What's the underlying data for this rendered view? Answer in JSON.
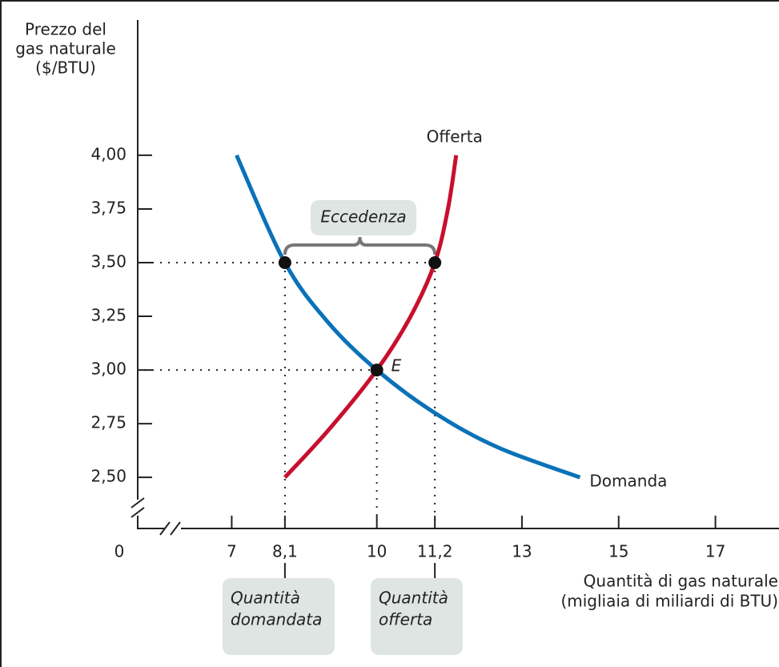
{
  "chart_data": {
    "type": "line",
    "y_label": [
      "Prezzo del",
      "gas naturale",
      "($/BTU)"
    ],
    "x_label": [
      "Quantità di gas naturale",
      "(migliaia di miliardi di BTU)"
    ],
    "origin_label": "0",
    "xlim": [
      6,
      18
    ],
    "ylim": [
      2.4,
      4.6
    ],
    "xticks": [
      7,
      {
        "value": 8.1,
        "label": "8,1"
      },
      10,
      {
        "value": 11.2,
        "label": "11,2"
      },
      13,
      15,
      17
    ],
    "yticks": [
      {
        "value": 2.5,
        "label": "2,50"
      },
      {
        "value": 2.75,
        "label": "2,75"
      },
      {
        "value": 3,
        "label": "3,00"
      },
      {
        "value": 3.25,
        "label": "3,25"
      },
      {
        "value": 3.5,
        "label": "3,50"
      },
      {
        "value": 3.75,
        "label": "3,75"
      },
      {
        "value": 4,
        "label": "4,00"
      }
    ],
    "series": [
      {
        "name": "Domanda",
        "color": "#0a72b8",
        "x": [
          7.1,
          8.1,
          9,
          10,
          11.2,
          12.5,
          14.2
        ],
        "values": [
          4.0,
          3.5,
          3.22,
          3.0,
          2.8,
          2.64,
          2.5
        ]
      },
      {
        "name": "Offerta",
        "color": "#c8102e",
        "x": [
          8.1,
          9,
          10,
          10.7,
          11.2,
          11.47,
          11.64
        ],
        "values": [
          2.5,
          2.72,
          3.0,
          3.25,
          3.5,
          3.75,
          4.0
        ]
      }
    ],
    "points": [
      {
        "x": 8.1,
        "y": 3.5
      },
      {
        "x": 11.2,
        "y": 3.5
      },
      {
        "x": 10,
        "y": 3,
        "label": "E"
      }
    ],
    "annotations": {
      "surplus": "Eccedenza",
      "quantity_demanded": [
        "Quantità",
        "domandata"
      ],
      "quantity_supplied": [
        "Quantità",
        "offerta"
      ]
    }
  }
}
